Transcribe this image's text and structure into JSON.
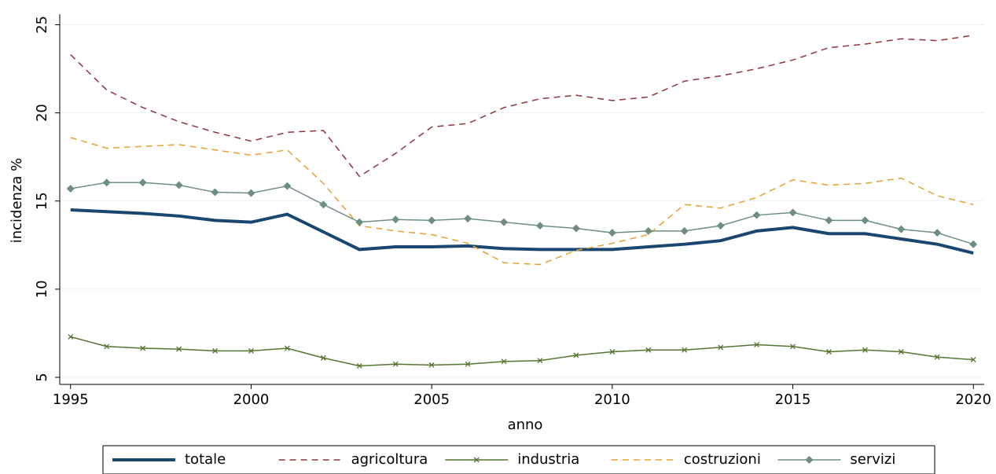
{
  "chart_data": {
    "type": "line",
    "x": [
      1995,
      1996,
      1997,
      1998,
      1999,
      2000,
      2001,
      2002,
      2003,
      2004,
      2005,
      2006,
      2007,
      2008,
      2009,
      2010,
      2011,
      2012,
      2013,
      2014,
      2015,
      2016,
      2017,
      2018,
      2019,
      2020
    ],
    "x_label": "anno",
    "y_label": "incidenza %",
    "xlim": [
      1994.7,
      2020.3
    ],
    "xticks": [
      1995,
      2000,
      2005,
      2010,
      2015,
      2020
    ],
    "ylim": [
      4.6,
      25.6
    ],
    "yticks": [
      5,
      10,
      15,
      20,
      25
    ],
    "grid": true,
    "legend": "bottom",
    "series": [
      {
        "name": "totale",
        "color": "#1a476f",
        "width": 4,
        "dash": "none",
        "marker": "none",
        "values": [
          14.5,
          14.4,
          14.3,
          14.15,
          13.9,
          13.8,
          14.25,
          13.25,
          12.25,
          12.4,
          12.4,
          12.45,
          12.3,
          12.25,
          12.25,
          12.25,
          12.4,
          12.55,
          12.75,
          13.3,
          13.5,
          13.15,
          13.15,
          12.85,
          12.55,
          12.05
        ]
      },
      {
        "name": "agricoltura",
        "color": "#90353b",
        "width": 1.5,
        "dash": "8 6",
        "marker": "none",
        "values": [
          23.3,
          21.3,
          20.3,
          19.5,
          18.9,
          18.4,
          18.9,
          19.0,
          16.4,
          17.7,
          19.2,
          19.4,
          20.3,
          20.8,
          21.0,
          20.7,
          20.9,
          21.8,
          22.1,
          22.5,
          23.0,
          23.7,
          23.9,
          24.2,
          24.1,
          24.4
        ]
      },
      {
        "name": "industria",
        "color": "#55752f",
        "width": 1.5,
        "dash": "none",
        "marker": "x",
        "values": [
          7.3,
          6.75,
          6.65,
          6.6,
          6.5,
          6.5,
          6.65,
          6.1,
          5.65,
          5.75,
          5.7,
          5.75,
          5.9,
          5.95,
          6.25,
          6.45,
          6.55,
          6.55,
          6.7,
          6.85,
          6.75,
          6.45,
          6.55,
          6.45,
          6.15,
          6.0
        ]
      },
      {
        "name": "costruzioni",
        "color": "#e8a02f",
        "width": 1.5,
        "dash": "8 6",
        "marker": "none",
        "values": [
          18.6,
          18.0,
          18.1,
          18.2,
          17.9,
          17.6,
          17.9,
          16.0,
          13.6,
          13.3,
          13.1,
          12.6,
          11.5,
          11.4,
          12.2,
          12.6,
          13.1,
          14.8,
          14.6,
          15.2,
          16.2,
          15.9,
          16.0,
          16.3,
          15.3,
          14.8
        ]
      },
      {
        "name": "servizi",
        "color": "#6e8e84",
        "width": 1.5,
        "dash": "none",
        "marker": "diamond",
        "values": [
          15.7,
          16.05,
          16.05,
          15.9,
          15.5,
          15.45,
          15.85,
          14.8,
          13.8,
          13.95,
          13.9,
          14.0,
          13.8,
          13.6,
          13.45,
          13.2,
          13.3,
          13.3,
          13.6,
          14.2,
          14.35,
          13.9,
          13.9,
          13.4,
          13.2,
          12.55
        ]
      }
    ]
  }
}
